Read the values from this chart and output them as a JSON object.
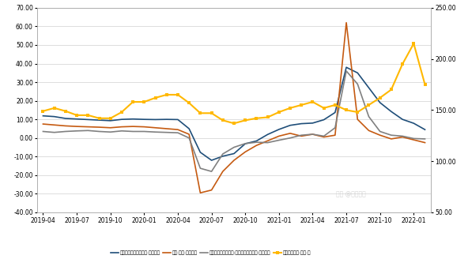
{
  "left_ylim": [
    -40,
    70
  ],
  "right_ylim": [
    50,
    250
  ],
  "left_yticks": [
    -40,
    -30,
    -20,
    -10,
    0,
    10,
    20,
    30,
    40,
    50,
    60,
    70
  ],
  "right_yticks": [
    50,
    100,
    150,
    200,
    250
  ],
  "x_labels": [
    "2019-04",
    "2019-07",
    "2019-10",
    "2020-01",
    "2020-04",
    "2020-07",
    "2020-10",
    "2021-01",
    "2021-04",
    "2021-07",
    "2021-10",
    "2022-01"
  ],
  "x_tick_positions": [
    0,
    3,
    6,
    9,
    12,
    15,
    18,
    21,
    24,
    27,
    30,
    33
  ],
  "background_color": "#FFFFFF",
  "grid_color": "#D0D0D0",
  "series_colors": [
    "#1F4E79",
    "#C55A11",
    "#808080",
    "#FFB800"
  ],
  "legend_labels": [
    "房地产开发投资完成额:累计同比",
    "产量:水泥:累计同比",
    "固定资产投资完成额:基础设施建设投资:累计同比",
    "水泥价格指数:全国:月"
  ],
  "real_estate": [
    11.9,
    11.5,
    10.5,
    10.2,
    9.9,
    9.6,
    9.3,
    10.0,
    10.2,
    10.0,
    9.9,
    10.0,
    9.9,
    5.0,
    -7.7,
    -12.0,
    -9.8,
    -8.4,
    -3.1,
    -1.6,
    1.9,
    4.6,
    6.8,
    7.7,
    8.0,
    9.8,
    13.7,
    38.0,
    35.0,
    27.0,
    19.0,
    14.2,
    10.0,
    7.9,
    4.5
  ],
  "cement_output": [
    7.5,
    7.0,
    6.5,
    6.2,
    6.0,
    5.8,
    5.5,
    6.0,
    6.2,
    6.0,
    5.5,
    5.0,
    4.5,
    2.0,
    -29.5,
    -28.0,
    -18.0,
    -12.0,
    -7.5,
    -4.0,
    -1.5,
    1.0,
    2.5,
    1.0,
    2.0,
    0.5,
    1.5,
    62.0,
    10.0,
    4.0,
    1.5,
    -0.5,
    0.5,
    -1.0,
    -2.5
  ],
  "infra": [
    3.5,
    3.0,
    3.5,
    3.8,
    4.0,
    3.5,
    3.2,
    3.8,
    3.5,
    3.5,
    3.2,
    3.0,
    2.8,
    0.0,
    -16.3,
    -18.0,
    -8.6,
    -5.0,
    -3.0,
    -2.3,
    -2.5,
    -1.2,
    0.0,
    1.5,
    2.0,
    1.0,
    5.5,
    36.0,
    29.0,
    11.5,
    3.5,
    1.5,
    1.0,
    -0.3,
    -0.5
  ],
  "cement_price": [
    149,
    152,
    149,
    145,
    145,
    142,
    142,
    148,
    158,
    158,
    162,
    165,
    165,
    157,
    147,
    147,
    140,
    137,
    140,
    142,
    143,
    148,
    152,
    155,
    158,
    152,
    155,
    150,
    148,
    155,
    162,
    170,
    195,
    215,
    175
  ]
}
